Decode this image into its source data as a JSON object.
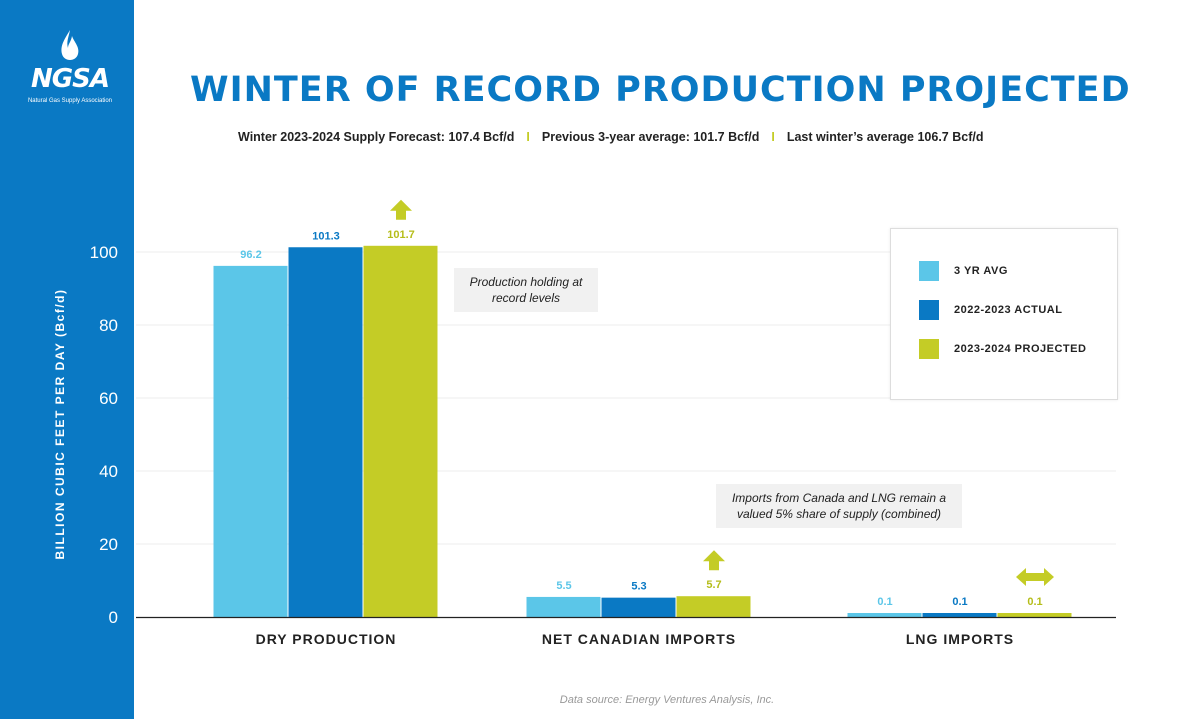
{
  "logo": {
    "text": "NGSA",
    "subtext": "Natural Gas Supply Association"
  },
  "header": {
    "title": "WINTER OF RECORD PRODUCTION PROJECTED",
    "subtitle_items": [
      "Winter 2023-2024 Supply Forecast: 107.4 Bcf/d",
      "Previous 3-year average: 101.7 Bcf/d",
      "Last winter’s average 106.7 Bcf/d"
    ],
    "separator": "I"
  },
  "annotations": {
    "note1": "Production holding at record levels",
    "note2": "Imports from Canada and LNG remain a valued 5% share of supply (combined)",
    "source": "Data source: Energy Ventures Analysis, Inc."
  },
  "colors": {
    "sidebar": "#0a79c4",
    "series_1": "#5bc6e8",
    "series_2": "#0a79c4",
    "series_3": "#c4cc26",
    "up_arrow_icon": "#c4cc26"
  },
  "chart_data": {
    "type": "bar",
    "title": "WINTER OF RECORD PRODUCTION PROJECTED",
    "ylabel": "BILLION CUBIC FEET PER DAY (Bcf/d)",
    "xlabel": "",
    "ylim": [
      0,
      100
    ],
    "yticks": [
      0,
      20,
      40,
      60,
      80,
      100
    ],
    "grid": true,
    "legend_position": "top-right",
    "categories": [
      "DRY PRODUCTION",
      "NET CANADIAN IMPORTS",
      "LNG IMPORTS"
    ],
    "series": [
      {
        "name": "3 YR AVG",
        "values": [
          96.2,
          5.5,
          0.1
        ],
        "labels": [
          "96.2",
          "5.5",
          "0.1"
        ]
      },
      {
        "name": "2022-2023 ACTUAL",
        "values": [
          101.3,
          5.3,
          0.1
        ],
        "labels": [
          "101.3",
          "5.3",
          "0.1"
        ]
      },
      {
        "name": "2023-2024 PROJECTED",
        "values": [
          101.7,
          5.7,
          0.1
        ],
        "labels": [
          "101.7",
          "5.7",
          "0.1"
        ]
      }
    ],
    "trend_icons": [
      "up-arrow-icon",
      "up-arrow-icon",
      "double-arrow-icon"
    ]
  }
}
